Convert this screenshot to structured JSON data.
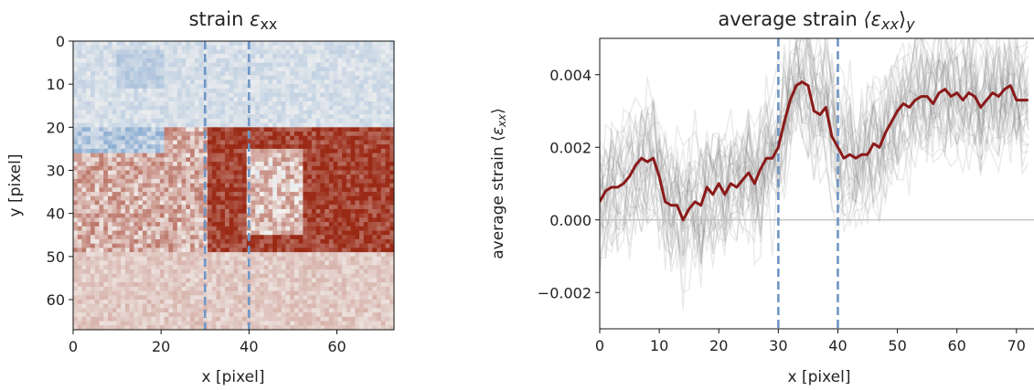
{
  "chart_data": [
    {
      "type": "heatmap",
      "title_main": "strain ",
      "title_symbol": "ε",
      "title_sub": "xx",
      "xlabel": "x [pixel]",
      "ylabel": "y [pixel]",
      "xlim": [
        0,
        73
      ],
      "ylim": [
        67,
        0
      ],
      "xticks": [
        0,
        20,
        40,
        60
      ],
      "yticks": [
        0,
        10,
        20,
        30,
        40,
        50,
        60
      ],
      "grid_size": [
        74,
        67
      ],
      "colormap": "RdBu_r (diverging: blue negative, white zero, dark red positive)",
      "colors": {
        "negative": "#5a8cc4",
        "zero": "#f4f3f1",
        "positive": "#9a2a16"
      },
      "vertical_markers": [
        30,
        40
      ],
      "marker_color": "#6f96c6",
      "approx_regions": [
        {
          "x": [
            0,
            73
          ],
          "y": [
            0,
            20
          ],
          "mean_strain": -0.0006,
          "note": "light blue / near zero"
        },
        {
          "x": [
            10,
            20
          ],
          "y": [
            2,
            10
          ],
          "mean_strain": -0.0012,
          "note": "blue patch"
        },
        {
          "x": [
            0,
            30
          ],
          "y": [
            20,
            49
          ],
          "mean_strain": 0.0012,
          "note": "mixed, warmer toward bottom"
        },
        {
          "x": [
            0,
            20
          ],
          "y": [
            20,
            25
          ],
          "mean_strain": -0.0015,
          "note": "blue specks"
        },
        {
          "x": [
            31,
            73
          ],
          "y": [
            20,
            49
          ],
          "mean_strain": 0.0035,
          "note": "dark red"
        },
        {
          "x": [
            40,
            52
          ],
          "y": [
            25,
            44
          ],
          "mean_strain": 0.0008,
          "note": "pale pocket"
        },
        {
          "x": [
            0,
            73
          ],
          "y": [
            49,
            67
          ],
          "mean_strain": 0.0006,
          "note": "pale pink"
        }
      ]
    },
    {
      "type": "line",
      "title_main": "average strain ",
      "title_symbol": "⟨ε",
      "title_sub_inner": "xx",
      "title_close": "⟩",
      "title_sub_outer": "y",
      "xlabel": "x [pixel]",
      "ylabel_main": "average strain ⟨",
      "ylabel_symbol": "ε",
      "ylabel_sub": "xx",
      "ylabel_close": "⟩",
      "xlim": [
        0,
        72
      ],
      "ylim": [
        -0.003,
        0.005
      ],
      "xticks": [
        0,
        10,
        20,
        30,
        40,
        50,
        60,
        70
      ],
      "ytick_values": [
        -0.002,
        0,
        0.002,
        0.004
      ],
      "ytick_labels": [
        "−0.002",
        "0.000",
        "0.002",
        "0.004"
      ],
      "hline": 0,
      "vertical_markers": [
        30,
        40
      ],
      "mean_series": {
        "color": "#8b1a1a",
        "x": [
          0,
          1,
          2,
          3,
          4,
          5,
          6,
          7,
          8,
          9,
          10,
          11,
          12,
          13,
          14,
          15,
          16,
          17,
          18,
          19,
          20,
          21,
          22,
          23,
          24,
          25,
          26,
          27,
          28,
          29,
          30,
          31,
          32,
          33,
          34,
          35,
          36,
          37,
          38,
          39,
          40,
          41,
          42,
          43,
          44,
          45,
          46,
          47,
          48,
          49,
          50,
          51,
          52,
          53,
          54,
          55,
          56,
          57,
          58,
          59,
          60,
          61,
          62,
          63,
          64,
          65,
          66,
          67,
          68,
          69,
          70,
          71,
          72
        ],
        "y": [
          0.0005,
          0.0008,
          0.0009,
          0.0009,
          0.001,
          0.0012,
          0.0015,
          0.0017,
          0.0016,
          0.0017,
          0.0012,
          0.0005,
          0.0004,
          0.0004,
          0.0,
          0.0003,
          0.0005,
          0.0004,
          0.0009,
          0.0007,
          0.001,
          0.0007,
          0.001,
          0.0009,
          0.0011,
          0.0013,
          0.001,
          0.0014,
          0.0017,
          0.0017,
          0.002,
          0.0027,
          0.0033,
          0.0037,
          0.0038,
          0.0037,
          0.003,
          0.0029,
          0.0031,
          0.0023,
          0.002,
          0.0017,
          0.0018,
          0.0017,
          0.0018,
          0.0018,
          0.0021,
          0.002,
          0.0024,
          0.0027,
          0.003,
          0.0032,
          0.0031,
          0.0033,
          0.0034,
          0.0034,
          0.0032,
          0.0035,
          0.0036,
          0.0034,
          0.0035,
          0.0033,
          0.0035,
          0.0034,
          0.0031,
          0.0033,
          0.0035,
          0.0034,
          0.0036,
          0.0037,
          0.0033,
          0.0033,
          0.0033
        ]
      },
      "row_series_count": 30,
      "row_series_color": "#7d7d7d"
    }
  ]
}
